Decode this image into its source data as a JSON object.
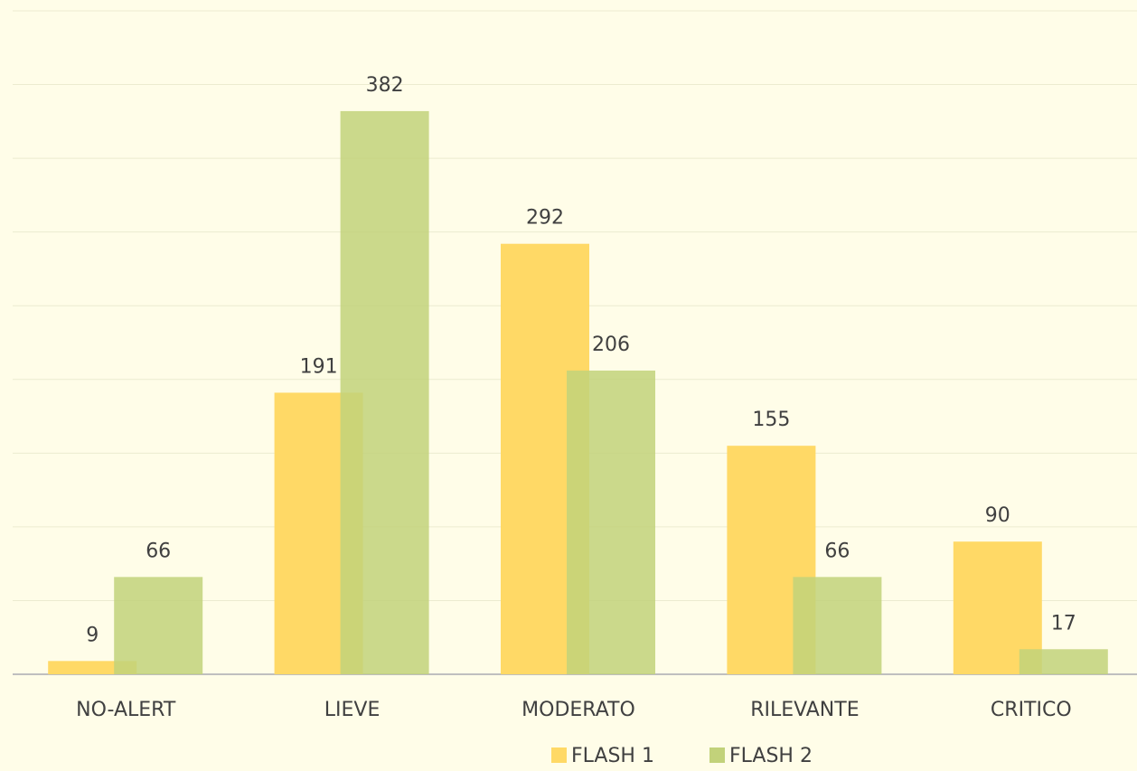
{
  "chart_data": {
    "type": "bar",
    "categories": [
      "NO-ALERT",
      "LIEVE",
      "MODERATO",
      "RILEVANTE",
      "CRITICO"
    ],
    "series": [
      {
        "name": "FLASH 1",
        "color": "#ffd966",
        "values": [
          9,
          191,
          292,
          155,
          90
        ]
      },
      {
        "name": "FLASH 2",
        "color": "#c2d27a",
        "values": [
          66,
          382,
          206,
          66,
          17
        ]
      }
    ],
    "ylim": [
      0,
      450
    ],
    "yticks": [
      0,
      50,
      100,
      150,
      200,
      250,
      300,
      350,
      400,
      450
    ],
    "grid": true,
    "legend": "bottom"
  }
}
